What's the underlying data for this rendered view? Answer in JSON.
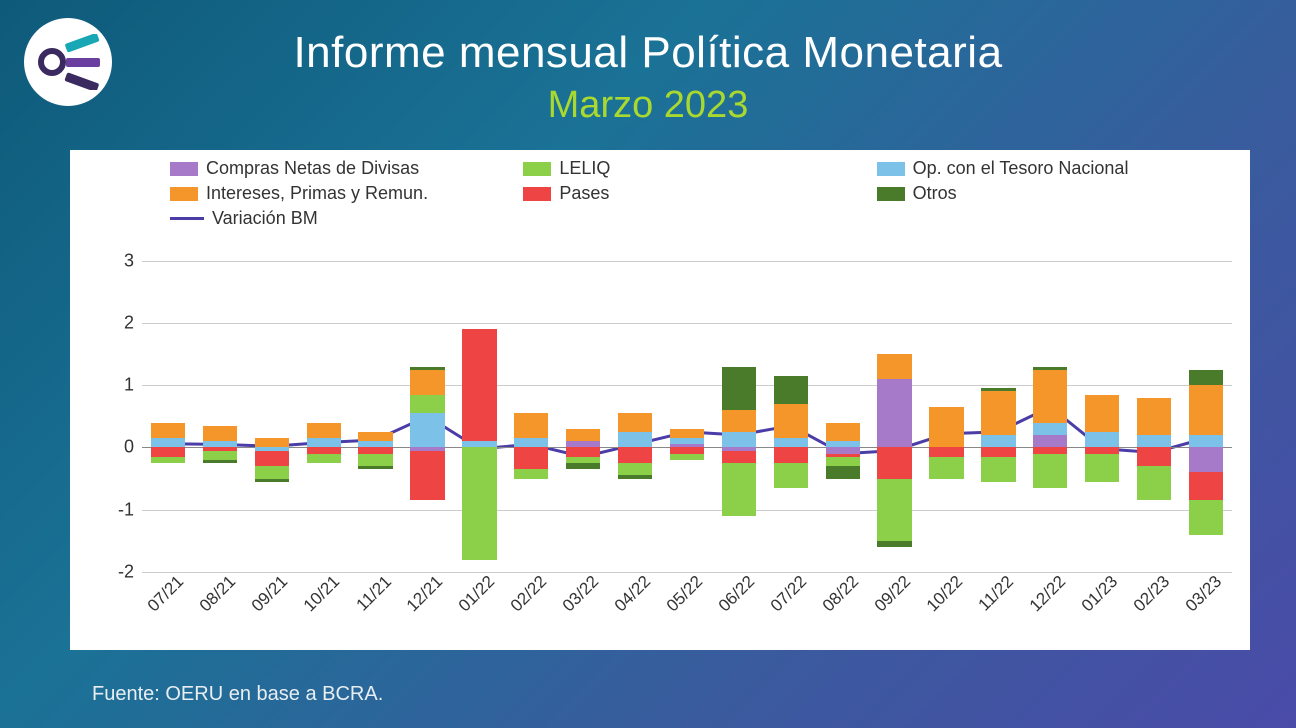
{
  "title": "Informe mensual Política Monetaria",
  "subtitle": "Marzo 2023",
  "subtitle_color": "#a9d92e",
  "source": "Fuente: OERU en base a BCRA.",
  "logo": {
    "ring_color": "#3a2a60",
    "bars": [
      "#1aa7b5",
      "#6a3fa0",
      "#3a2a60"
    ]
  },
  "chart": {
    "type": "stacked-bar-with-line",
    "background_color": "#ffffff",
    "grid_color": "#cccccc",
    "axis_color": "#888888",
    "text_color": "#333333",
    "y_min": -2,
    "y_max": 3.3,
    "y_ticks": [
      -2,
      -1,
      0,
      1,
      2,
      3
    ],
    "bar_width_ratio": 0.66,
    "tick_fontsize": 18,
    "legend_fontsize": 18,
    "series": [
      {
        "key": "compras",
        "label": "Compras Netas de Divisas",
        "color": "#a77ac9"
      },
      {
        "key": "op_tesoro",
        "label": "Op. con el Tesoro Nacional",
        "color": "#7cc1e8"
      },
      {
        "key": "pases",
        "label": "Pases",
        "color": "#ef4444"
      },
      {
        "key": "leliq",
        "label": "LELIQ",
        "color": "#8cd04a"
      },
      {
        "key": "intereses",
        "label": "Intereses, Primas y Remun.",
        "color": "#f5962a"
      },
      {
        "key": "otros",
        "label": "Otros",
        "color": "#4a7b2a"
      }
    ],
    "legend_order": [
      "compras",
      "leliq",
      "op_tesoro",
      "intereses",
      "pases",
      "otros"
    ],
    "line_series": {
      "key": "variacion_bm",
      "label": "Variación BM",
      "color": "#4a3da8",
      "width": 3
    },
    "categories": [
      "07/21",
      "08/21",
      "09/21",
      "10/21",
      "11/21",
      "12/21",
      "01/22",
      "02/22",
      "03/22",
      "04/22",
      "05/22",
      "06/22",
      "07/22",
      "08/22",
      "09/22",
      "10/22",
      "11/22",
      "12/22",
      "01/23",
      "02/23",
      "03/23"
    ],
    "data": {
      "compras": [
        0.0,
        0.0,
        0.0,
        0.0,
        0.0,
        -0.05,
        0.0,
        0.0,
        0.1,
        0.0,
        0.05,
        -0.05,
        0.0,
        -0.1,
        1.1,
        0.0,
        0.0,
        0.2,
        0.0,
        0.0,
        -0.4
      ],
      "op_tesoro": [
        0.15,
        0.1,
        -0.05,
        0.15,
        0.1,
        0.55,
        0.1,
        0.15,
        0.0,
        0.25,
        0.1,
        0.25,
        0.15,
        0.1,
        0.0,
        0.0,
        0.2,
        0.2,
        0.25,
        0.2,
        0.2
      ],
      "pases": [
        -0.15,
        -0.05,
        -0.25,
        -0.1,
        -0.1,
        -0.8,
        1.8,
        -0.35,
        -0.15,
        -0.25,
        -0.1,
        -0.2,
        -0.25,
        -0.05,
        -0.5,
        -0.15,
        -0.15,
        -0.1,
        -0.1,
        -0.3,
        -0.45
      ],
      "leliq": [
        -0.1,
        -0.15,
        -0.2,
        -0.15,
        -0.2,
        0.3,
        -1.8,
        -0.15,
        -0.1,
        -0.2,
        -0.1,
        -0.85,
        -0.4,
        -0.15,
        -1.0,
        -0.35,
        -0.4,
        -0.55,
        -0.45,
        -0.55,
        -0.55
      ],
      "intereses": [
        0.25,
        0.25,
        0.15,
        0.25,
        0.15,
        0.4,
        0.0,
        0.4,
        0.2,
        0.3,
        0.15,
        0.35,
        0.55,
        0.3,
        0.4,
        0.65,
        0.7,
        0.85,
        0.6,
        0.6,
        0.8
      ],
      "otros": [
        0.0,
        -0.05,
        -0.05,
        0.0,
        -0.05,
        0.05,
        0.0,
        0.0,
        -0.1,
        -0.05,
        0.0,
        0.7,
        0.45,
        -0.2,
        -0.1,
        0.0,
        0.05,
        0.05,
        0.0,
        0.0,
        0.25
      ]
    },
    "line_values": [
      0.06,
      0.05,
      0.02,
      0.08,
      0.12,
      0.5,
      -0.02,
      0.05,
      -0.15,
      0.05,
      0.25,
      0.2,
      0.35,
      -0.1,
      -0.05,
      0.22,
      0.25,
      0.65,
      -0.02,
      -0.08,
      0.15
    ]
  }
}
